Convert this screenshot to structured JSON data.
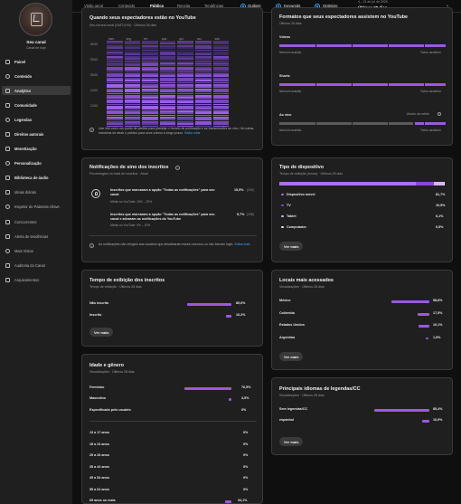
{
  "sidebar": {
    "channel_name": "Seu canal",
    "channel_sub": "Canal de hoje",
    "items": [
      {
        "label": "Painel",
        "icon": "dashboard-icon",
        "style": "bold"
      },
      {
        "label": "Conteúdo",
        "icon": "content-icon",
        "style": "bold"
      },
      {
        "label": "Analytics",
        "icon": "analytics-icon",
        "style": "bold",
        "active": true
      },
      {
        "label": "Comunidade",
        "icon": "community-icon",
        "style": "bold"
      },
      {
        "label": "Legendas",
        "icon": "subtitles-icon",
        "style": "bold"
      },
      {
        "label": "Direitos autorais",
        "icon": "copyright-icon",
        "style": "bold"
      },
      {
        "label": "Monetização",
        "icon": "monetization-icon",
        "style": "bold"
      },
      {
        "label": "Personalização",
        "icon": "customization-icon",
        "style": "bold"
      },
      {
        "label": "Biblioteca de áudio",
        "icon": "audio-library-icon",
        "style": "bold"
      },
      {
        "label": "Ideias diárias",
        "icon": "ideas-icon",
        "style": "plain"
      },
      {
        "label": "Inspetor de Palavras-chave",
        "icon": "keyword-icon",
        "style": "plain"
      },
      {
        "label": "Concorrentes",
        "icon": "competitors-icon",
        "style": "plain"
      },
      {
        "label": "Alerta de tendências",
        "icon": "trend-alert-icon",
        "style": "plain"
      },
      {
        "label": "Mais Vistos",
        "icon": "most-viewed-icon",
        "style": "plain"
      },
      {
        "label": "Auditoria do Canal",
        "icon": "audit-icon",
        "style": "plain"
      },
      {
        "label": "Arquivamentos",
        "icon": "archive-icon",
        "style": "plain"
      }
    ]
  },
  "topbar": {
    "tabs": [
      "Visão geral",
      "Conteúdo",
      "Público",
      "Receita",
      "Tendências"
    ],
    "active_tab": "Público",
    "toggles": [
      "Outliers",
      "Keywords",
      "Optimize"
    ],
    "date_range": "4 – 31 de jul. de 2025",
    "date_label": "Últimos 28 dias"
  },
  "heatmap_card": {
    "title": "Quando seus espectadores estão no YouTube",
    "subtitle": "Seu horário local (GMT-0:00) · Últimos 28 dias",
    "days": [
      "dom.",
      "seg.",
      "ter.",
      "qua.",
      "qui.",
      "sex.",
      "sáb."
    ],
    "times": [
      "00:00",
      "03:00",
      "06:00",
      "10:00",
      "13:00"
    ],
    "note": "Use isto como um ponto de partida para planejar o horário de publicação e as transmissões ao vivo. Há outras maneiras de atrair o público",
    "note_tail": "para seus vídeos a longo prazo.",
    "link": "Saiba mais"
  },
  "notif_card": {
    "title": "Notificações de sino dos inscritos",
    "subtitle": "Porcentagem do total de inscritos · Atual",
    "row1_text": "Inscritos que marcaram a opção \"Todas as notificações\" para seu canal",
    "row1_sub": "Média no YouTube: 10% – 20%",
    "row1_value": "15,5%",
    "row1_count": "(240)",
    "row2_text": "Inscritos que marcaram a opção \"Todas as notificações\" para seu canal e ativaram as notificações do YouTube",
    "row2_sub": "Média no YouTube: 0% – 20%",
    "row2_value": "5,7%",
    "row2_count": "(108)",
    "note": "As notificações não chegam aos usuários que desativaram esses recursos ou não fizeram",
    "note_tail": "login.",
    "link": "Saiba mais",
    "icon": "bell-ring-icon"
  },
  "watch_card": {
    "title": "Tempo de exibição dos inscritos",
    "subtitle": "Tempo de exibição · Últimos 28 dias",
    "rows": [
      {
        "label": "Não inscrito",
        "value": "89,6%",
        "fraction": 0.896
      },
      {
        "label": "Inscrito",
        "value": "10,2%",
        "fraction": 0.102
      }
    ],
    "button": "Ver mais"
  },
  "age_card": {
    "title": "Idade e gênero",
    "subtitle": "Visualizações · Últimos 28 dias",
    "gender_rows": [
      {
        "label": "Feminino",
        "value": "76,5%",
        "fraction": 0.765
      },
      {
        "label": "Masculino",
        "value": "3,5%",
        "fraction": 0.035
      },
      {
        "label": "Especificado pelo usuário",
        "value": "0%",
        "fraction": 0
      }
    ],
    "age_rows": [
      {
        "label": "13 a 17 anos",
        "value": "0%",
        "fraction": 0
      },
      {
        "label": "18 a 24 anos",
        "value": "0%",
        "fraction": 0
      },
      {
        "label": "25 a 34 anos",
        "value": "0%",
        "fraction": 0
      },
      {
        "label": "35 a 44 anos",
        "value": "0%",
        "fraction": 0
      },
      {
        "label": "45 a 54 anos",
        "value": "0%",
        "fraction": 0
      },
      {
        "label": "55 a 64 anos",
        "value": "0%",
        "fraction": 0
      },
      {
        "label": "65 anos ou mais",
        "value": "34,1%",
        "fraction": 0.341
      }
    ]
  },
  "formats_card": {
    "title": "Formatos que seus espectadores assistem no YouTube",
    "subtitle": "Últimos 28 dias",
    "rows": [
      {
        "label": "Vídeos",
        "left": "Nenhum assistiu",
        "right": "Todos assistem"
      },
      {
        "label": "Shorts",
        "left": "Nenhum assistiu",
        "right": "Todos assistem"
      },
      {
        "label": "Ao vivo",
        "left": "Nenhum assistiu",
        "right": "Todos assistem",
        "extra": "Abaixo da média"
      }
    ]
  },
  "device_card": {
    "title": "Tipo de dispositivo",
    "subtitle": "Tempo de exibição (horas) · Últimos 28 dias",
    "rows": [
      {
        "label": "Dispositivo móvel",
        "value": "81,7%",
        "fraction": 0.817,
        "color": "#b06df0"
      },
      {
        "label": "TV",
        "value": "10,5%",
        "fraction": 0.105,
        "color": "#8e44d4"
      },
      {
        "label": "Tablet",
        "value": "6,1%",
        "fraction": 0.061,
        "color": "#d7b4f7"
      },
      {
        "label": "Computador",
        "value": "0,5%",
        "fraction": 0.005,
        "color": "#f0e2ff"
      }
    ],
    "button": "Ver mais"
  },
  "geo_card": {
    "title": "Locais mais acessados",
    "subtitle": "Visualizações · Últimos 28 dias",
    "rows": [
      {
        "label": "México",
        "value": "58,8%",
        "fraction": 0.588
      },
      {
        "label": "Colômbia",
        "value": "17,5%",
        "fraction": 0.175
      },
      {
        "label": "Estados Unidos",
        "value": "16,1%",
        "fraction": 0.161
      },
      {
        "label": "Argentina",
        "value": "1,5%",
        "fraction": 0.015
      }
    ],
    "button": "Ver mais"
  },
  "lang_card": {
    "title": "Principais idiomas de legendas/CC",
    "subtitle": "Visualizações · Últimos 28 dias",
    "rows": [
      {
        "label": "Sem legendas/CC",
        "value": "85,4%",
        "fraction": 0.854
      },
      {
        "label": "espanhol",
        "value": "10,9%",
        "fraction": 0.109
      }
    ],
    "button": "Ver mais"
  },
  "colors": {
    "accent": "#9b59e0",
    "link": "#3ea6ff",
    "card_bg": "#1f1f1f",
    "page_bg": "#0f0f0f"
  }
}
